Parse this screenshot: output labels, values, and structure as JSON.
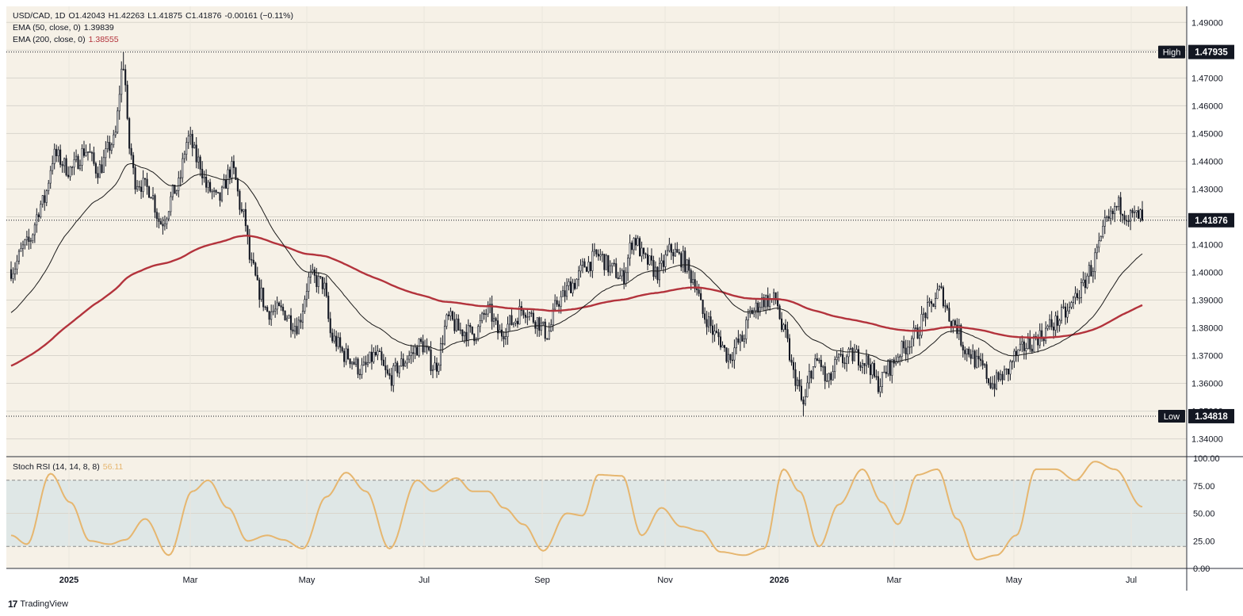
{
  "header": {
    "symbol": "USD/CAD, 1D",
    "open": "O1.42043",
    "high": "H1.42263",
    "low": "L1.41875",
    "close": "C1.41876",
    "change": "-0.00161 (−0.11%)",
    "ema50_label": "EMA (50, close, 0)",
    "ema50_value": "1.39839",
    "ema200_label": "EMA (200, close, 0)",
    "ema200_value": "1.38555",
    "stoch_label": "Stoch RSI (14, 14, 8, 8)",
    "stoch_value": "56.11"
  },
  "branding": {
    "logo_text": "TradingView",
    "logo_mark": "17"
  },
  "colors": {
    "background": "#f6f1e7",
    "candle": "#131722",
    "ema50": "#1b1b1b",
    "ema200": "#b3333c",
    "stoch": "#e6b66f",
    "stoch_band": "#dfe7e6",
    "grid": "#d9d5cc"
  },
  "chart_data": [
    {
      "type": "candlestick",
      "title": "USD/CAD, 1D",
      "x_ticks": [
        "2025",
        "Mar",
        "May",
        "Jul",
        "Sep",
        "Nov",
        "2026",
        "Mar",
        "May",
        "Jul"
      ],
      "y_ticks": [
        "1.34000",
        "1.35000",
        "1.36000",
        "1.37000",
        "1.38000",
        "1.39000",
        "1.40000",
        "1.41000",
        "1.42000",
        "1.43000",
        "1.44000",
        "1.45000",
        "1.46000",
        "1.47000",
        "1.48000",
        "1.49000"
      ],
      "ylim": [
        1.3336,
        1.4958
      ],
      "markers": [
        {
          "label": "High",
          "value": "1.47935"
        },
        {
          "label": "Low",
          "value": "1.34818"
        }
      ],
      "last_price": "1.41876",
      "trajectory": [
        [
          0,
          1.401
        ],
        [
          8,
          1.41
        ],
        [
          16,
          1.425
        ],
        [
          22,
          1.442
        ],
        [
          30,
          1.437
        ],
        [
          38,
          1.444
        ],
        [
          44,
          1.437
        ],
        [
          52,
          1.447
        ],
        [
          57,
          1.475
        ],
        [
          60,
          1.445
        ],
        [
          63,
          1.433
        ],
        [
          70,
          1.43
        ],
        [
          76,
          1.418
        ],
        [
          84,
          1.43
        ],
        [
          90,
          1.448
        ],
        [
          95,
          1.44
        ],
        [
          100,
          1.43
        ],
        [
          105,
          1.426
        ],
        [
          112,
          1.437
        ],
        [
          118,
          1.42
        ],
        [
          122,
          1.402
        ],
        [
          126,
          1.393
        ],
        [
          130,
          1.386
        ],
        [
          137,
          1.386
        ],
        [
          145,
          1.381
        ],
        [
          152,
          1.398
        ],
        [
          158,
          1.396
        ],
        [
          163,
          1.376
        ],
        [
          170,
          1.37
        ],
        [
          178,
          1.365
        ],
        [
          185,
          1.37
        ],
        [
          192,
          1.362
        ],
        [
          198,
          1.367
        ],
        [
          202,
          1.37
        ],
        [
          208,
          1.374
        ],
        [
          215,
          1.366
        ],
        [
          222,
          1.383
        ],
        [
          228,
          1.379
        ],
        [
          235,
          1.378
        ],
        [
          242,
          1.386
        ],
        [
          248,
          1.378
        ],
        [
          254,
          1.382
        ],
        [
          260,
          1.387
        ],
        [
          266,
          1.383
        ],
        [
          272,
          1.378
        ],
        [
          278,
          1.39
        ],
        [
          285,
          1.396
        ],
        [
          292,
          1.403
        ],
        [
          298,
          1.406
        ],
        [
          305,
          1.401
        ],
        [
          310,
          1.398
        ],
        [
          316,
          1.412
        ],
        [
          322,
          1.404
        ],
        [
          328,
          1.4
        ],
        [
          335,
          1.408
        ],
        [
          340,
          1.405
        ],
        [
          346,
          1.398
        ],
        [
          352,
          1.384
        ],
        [
          358,
          1.377
        ],
        [
          364,
          1.37
        ],
        [
          370,
          1.375
        ],
        [
          376,
          1.386
        ],
        [
          382,
          1.39
        ],
        [
          388,
          1.39
        ],
        [
          392,
          1.378
        ],
        [
          398,
          1.362
        ],
        [
          402,
          1.352
        ],
        [
          406,
          1.365
        ],
        [
          410,
          1.368
        ],
        [
          414,
          1.36
        ],
        [
          420,
          1.368
        ],
        [
          428,
          1.37
        ],
        [
          434,
          1.368
        ],
        [
          440,
          1.36
        ],
        [
          446,
          1.366
        ],
        [
          452,
          1.372
        ],
        [
          458,
          1.377
        ],
        [
          465,
          1.386
        ],
        [
          471,
          1.393
        ],
        [
          478,
          1.382
        ],
        [
          485,
          1.372
        ],
        [
          492,
          1.366
        ],
        [
          498,
          1.36
        ],
        [
          504,
          1.363
        ],
        [
          510,
          1.37
        ],
        [
          516,
          1.374
        ],
        [
          522,
          1.377
        ],
        [
          528,
          1.381
        ],
        [
          535,
          1.385
        ],
        [
          542,
          1.393
        ],
        [
          548,
          1.401
        ],
        [
          552,
          1.409
        ],
        [
          556,
          1.418
        ],
        [
          562,
          1.424
        ],
        [
          568,
          1.42
        ],
        [
          574,
          1.42
        ]
      ],
      "series": [
        {
          "name": "EMA (50, close, 0)",
          "key": "ema50",
          "last": 1.39839
        },
        {
          "name": "EMA (200, close, 0)",
          "key": "ema200",
          "last": 1.38555
        }
      ]
    },
    {
      "type": "line",
      "title": "Stoch RSI (14, 14, 8, 8)",
      "y_ticks": [
        "100.00",
        "75.00",
        "50.00",
        "25.00",
        "0.00"
      ],
      "ylim": [
        0,
        100
      ],
      "bands": [
        20,
        80
      ],
      "last_value": 56.11,
      "anchors": [
        [
          0,
          30
        ],
        [
          8,
          22
        ],
        [
          20,
          86
        ],
        [
          30,
          60
        ],
        [
          40,
          25
        ],
        [
          50,
          22
        ],
        [
          58,
          26
        ],
        [
          68,
          45
        ],
        [
          80,
          12
        ],
        [
          92,
          70
        ],
        [
          100,
          80
        ],
        [
          110,
          55
        ],
        [
          120,
          25
        ],
        [
          130,
          30
        ],
        [
          138,
          26
        ],
        [
          148,
          18
        ],
        [
          160,
          65
        ],
        [
          170,
          87
        ],
        [
          180,
          70
        ],
        [
          192,
          18
        ],
        [
          206,
          80
        ],
        [
          214,
          70
        ],
        [
          226,
          82
        ],
        [
          234,
          70
        ],
        [
          242,
          70
        ],
        [
          250,
          55
        ],
        [
          260,
          40
        ],
        [
          270,
          16
        ],
        [
          282,
          50
        ],
        [
          290,
          48
        ],
        [
          298,
          85
        ],
        [
          310,
          84
        ],
        [
          320,
          30
        ],
        [
          330,
          55
        ],
        [
          340,
          38
        ],
        [
          350,
          34
        ],
        [
          360,
          15
        ],
        [
          372,
          12
        ],
        [
          382,
          18
        ],
        [
          392,
          90
        ],
        [
          400,
          70
        ],
        [
          410,
          20
        ],
        [
          420,
          58
        ],
        [
          432,
          90
        ],
        [
          442,
          60
        ],
        [
          450,
          40
        ],
        [
          460,
          85
        ],
        [
          470,
          90
        ],
        [
          480,
          45
        ],
        [
          490,
          8
        ],
        [
          500,
          12
        ],
        [
          510,
          30
        ],
        [
          520,
          90
        ],
        [
          530,
          90
        ],
        [
          540,
          80
        ],
        [
          550,
          97
        ],
        [
          560,
          90
        ],
        [
          574,
          56
        ]
      ]
    }
  ]
}
